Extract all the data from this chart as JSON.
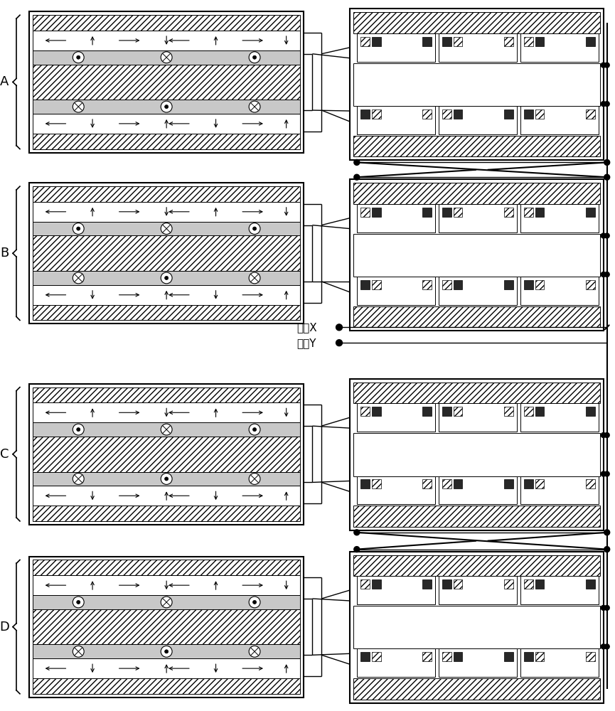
{
  "bg_color": "#ffffff",
  "line_color": "#000000",
  "label_A": "A",
  "label_B": "B",
  "label_C": "C",
  "label_D": "D",
  "label_X": "油口X",
  "label_Y": "油口Y",
  "fig_width": 8.65,
  "fig_height": 10.0,
  "dpi": 100
}
